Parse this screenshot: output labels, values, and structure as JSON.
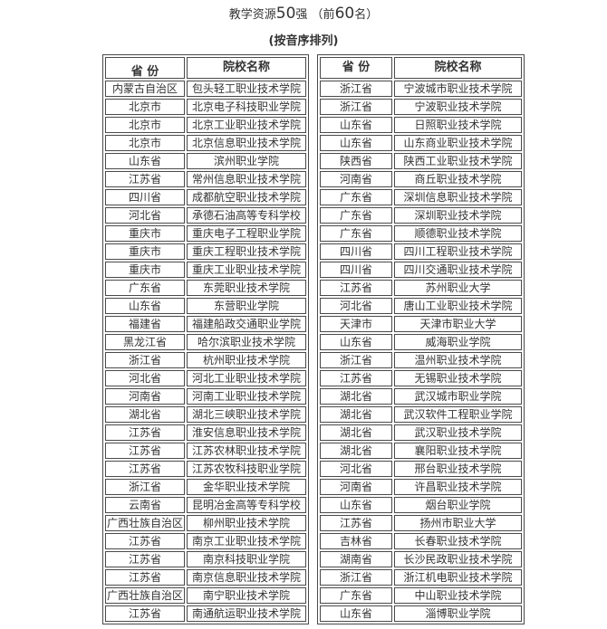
{
  "title_parts": [
    {
      "text": "教学资源",
      "digit": false
    },
    {
      "text": "50",
      "digit": true
    },
    {
      "text": "强 （前",
      "digit": false
    },
    {
      "text": "60",
      "digit": true
    },
    {
      "text": "名）",
      "digit": false
    }
  ],
  "subtitle": "(按音序排列)",
  "table": {
    "province_header": "省 份",
    "school_header": "院校名称",
    "left_rows": [
      [
        "内蒙古自治区",
        "包头轻工职业技术学院"
      ],
      [
        "北京市",
        "北京电子科技职业学院"
      ],
      [
        "北京市",
        "北京工业职业技术学院"
      ],
      [
        "北京市",
        "北京信息职业技术学院"
      ],
      [
        "山东省",
        "滨州职业学院"
      ],
      [
        "江苏省",
        "常州信息职业技术学院"
      ],
      [
        "四川省",
        "成都航空职业技术学院"
      ],
      [
        "河北省",
        "承德石油高等专科学校"
      ],
      [
        "重庆市",
        "重庆电子工程职业学院"
      ],
      [
        "重庆市",
        "重庆工程职业技术学院"
      ],
      [
        "重庆市",
        "重庆工业职业技术学院"
      ],
      [
        "广东省",
        "东莞职业技术学院"
      ],
      [
        "山东省",
        "东营职业学院"
      ],
      [
        "福建省",
        "福建船政交通职业学院"
      ],
      [
        "黑龙江省",
        "哈尔滨职业技术学院"
      ],
      [
        "浙江省",
        "杭州职业技术学院"
      ],
      [
        "河北省",
        "河北工业职业技术学院"
      ],
      [
        "河南省",
        "河南工业职业技术学院"
      ],
      [
        "湖北省",
        "湖北三峡职业技术学院"
      ],
      [
        "江苏省",
        "淮安信息职业技术学院"
      ],
      [
        "江苏省",
        "江苏农林职业技术学院"
      ],
      [
        "江苏省",
        "江苏农牧科技职业学院"
      ],
      [
        "浙江省",
        "金华职业技术学院"
      ],
      [
        "云南省",
        "昆明冶金高等专科学校"
      ],
      [
        "广西壮族自治区",
        "柳州职业技术学院"
      ],
      [
        "江苏省",
        "南京工业职业技术学院"
      ],
      [
        "江苏省",
        "南京科技职业学院"
      ],
      [
        "江苏省",
        "南京信息职业技术学院"
      ],
      [
        "广西壮族自治区",
        "南宁职业技术学院"
      ],
      [
        "江苏省",
        "南通航运职业技术学院"
      ]
    ],
    "right_rows": [
      [
        "浙江省",
        "宁波城市职业技术学院"
      ],
      [
        "浙江省",
        "宁波职业技术学院"
      ],
      [
        "山东省",
        "日照职业技术学院"
      ],
      [
        "山东省",
        "山东商业职业技术学院"
      ],
      [
        "陕西省",
        "陕西工业职业技术学院"
      ],
      [
        "河南省",
        "商丘职业技术学院"
      ],
      [
        "广东省",
        "深圳信息职业技术学院"
      ],
      [
        "广东省",
        "深圳职业技术学院"
      ],
      [
        "广东省",
        "顺德职业技术学院"
      ],
      [
        "四川省",
        "四川工程职业技术学院"
      ],
      [
        "四川省",
        "四川交通职业技术学院"
      ],
      [
        "江苏省",
        "苏州职业大学"
      ],
      [
        "河北省",
        "唐山工业职业技术学院"
      ],
      [
        "天津市",
        "天津市职业大学"
      ],
      [
        "山东省",
        "威海职业学院"
      ],
      [
        "浙江省",
        "温州职业技术学院"
      ],
      [
        "江苏省",
        "无锡职业技术学院"
      ],
      [
        "湖北省",
        "武汉城市职业学院"
      ],
      [
        "湖北省",
        "武汉软件工程职业学院"
      ],
      [
        "湖北省",
        "武汉职业技术学院"
      ],
      [
        "湖北省",
        "襄阳职业技术学院"
      ],
      [
        "河北省",
        "邢台职业技术学院"
      ],
      [
        "河南省",
        "许昌职业技术学院"
      ],
      [
        "山东省",
        "烟台职业学院"
      ],
      [
        "江苏省",
        "扬州市职业大学"
      ],
      [
        "吉林省",
        "长春职业技术学院"
      ],
      [
        "湖南省",
        "长沙民政职业技术学院"
      ],
      [
        "浙江省",
        "浙江机电职业技术学院"
      ],
      [
        "广东省",
        "中山职业技术学院"
      ],
      [
        "山东省",
        "淄博职业学院"
      ]
    ]
  },
  "colors": {
    "border": "#4a4a4a",
    "text": "#333333"
  }
}
